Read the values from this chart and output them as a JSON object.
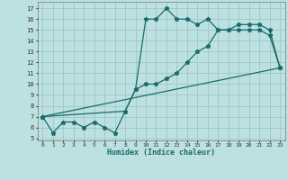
{
  "xlabel": "Humidex (Indice chaleur)",
  "bg_color": "#bde0e0",
  "line_color": "#1a6b6b",
  "grid_color": "#9cc8c8",
  "xlim": [
    -0.5,
    23.5
  ],
  "ylim": [
    4.8,
    17.6
  ],
  "xticks": [
    0,
    1,
    2,
    3,
    4,
    5,
    6,
    7,
    8,
    9,
    10,
    11,
    12,
    13,
    14,
    15,
    16,
    17,
    18,
    19,
    20,
    21,
    22,
    23
  ],
  "yticks": [
    5,
    6,
    7,
    8,
    9,
    10,
    11,
    12,
    13,
    14,
    15,
    16,
    17
  ],
  "series": [
    {
      "x": [
        0,
        1,
        2,
        3,
        4,
        5,
        6,
        7,
        8,
        9,
        10,
        11,
        12,
        13,
        14,
        15,
        16,
        17,
        18,
        19,
        20,
        21,
        22,
        23
      ],
      "y": [
        7,
        5.5,
        6.5,
        6.5,
        6,
        6.5,
        6,
        5.5,
        7.5,
        9.5,
        16,
        16,
        17,
        16,
        16,
        15.5,
        16,
        15,
        15,
        15,
        15,
        15,
        14.5,
        11.5
      ]
    },
    {
      "x": [
        0,
        8,
        9,
        10,
        11,
        12,
        13,
        14,
        15,
        16,
        17,
        18,
        19,
        20,
        21,
        22,
        23
      ],
      "y": [
        7,
        7.5,
        9.5,
        10,
        10,
        10.5,
        11,
        12,
        13,
        13.5,
        15,
        15,
        15.5,
        15.5,
        15.5,
        15,
        11.5
      ]
    },
    {
      "x": [
        0,
        23
      ],
      "y": [
        7,
        11.5
      ]
    }
  ]
}
